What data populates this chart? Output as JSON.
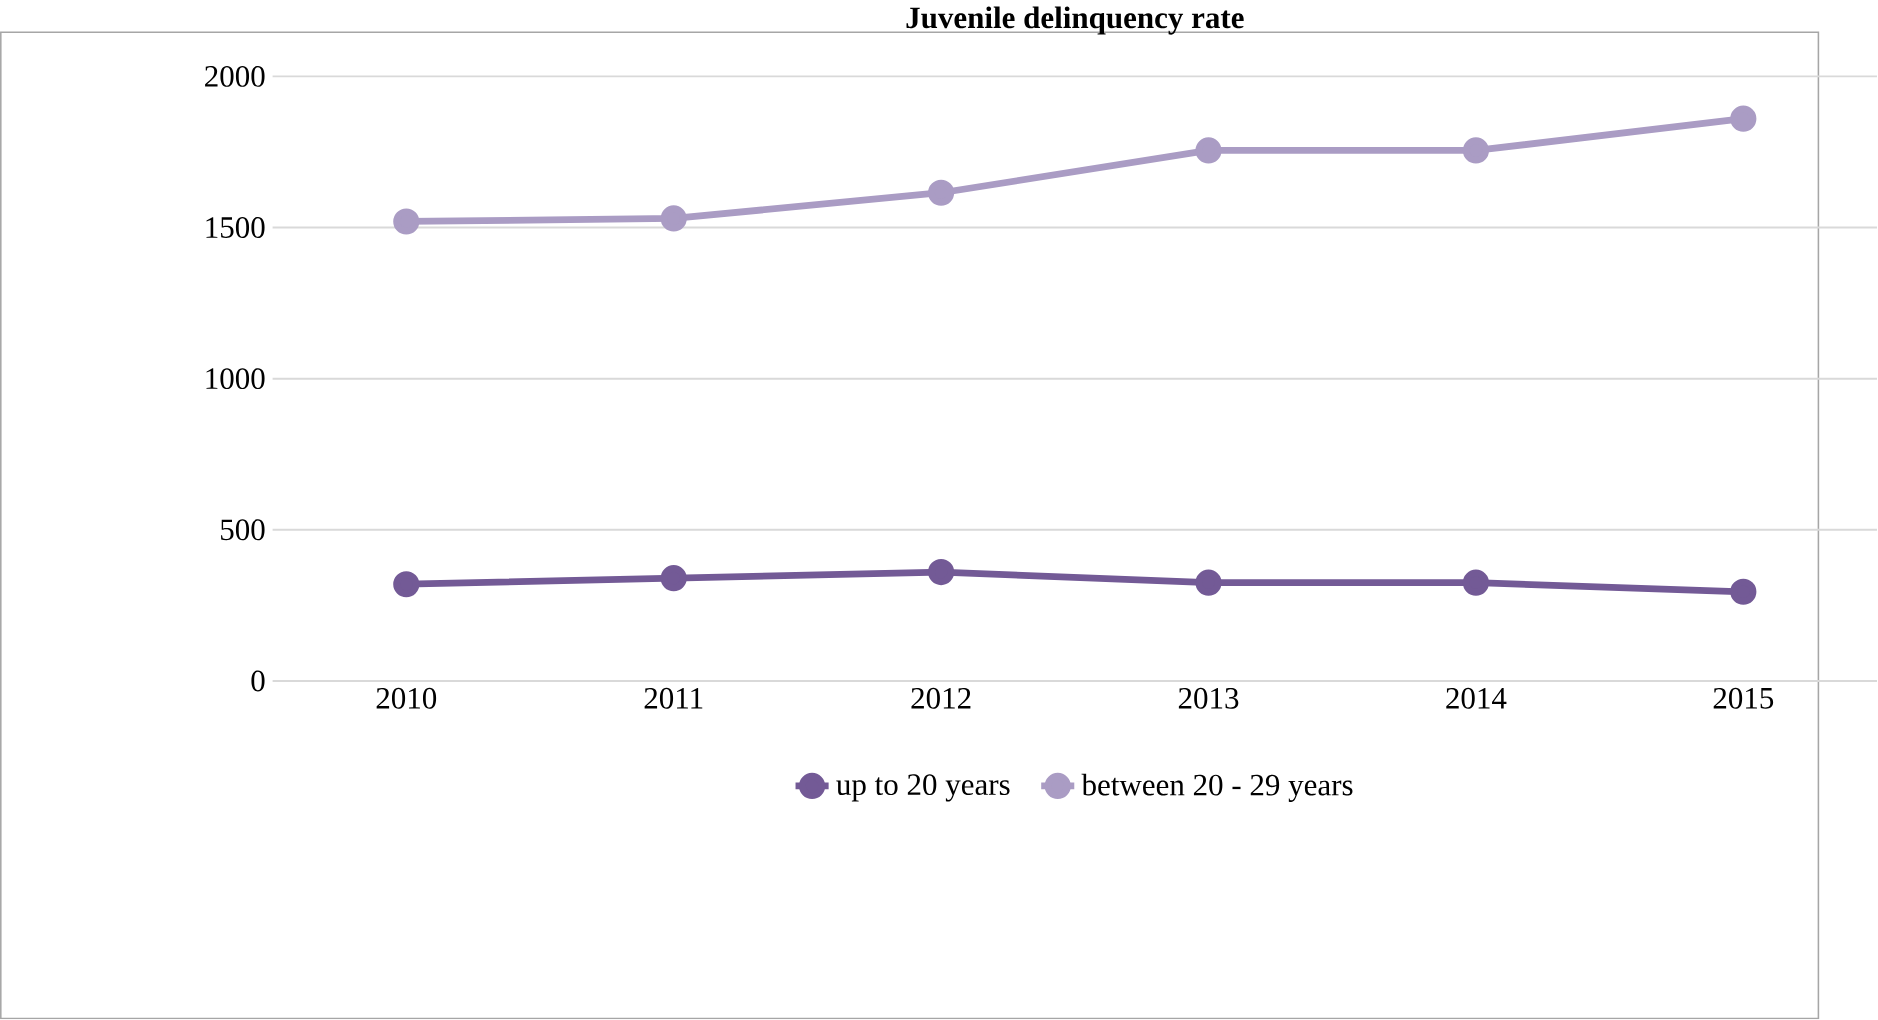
{
  "chart_data": {
    "type": "line",
    "title": "Juvenile delinquency rate",
    "categories": [
      "2010",
      "2011",
      "2012",
      "2013",
      "2014",
      "2015"
    ],
    "series": [
      {
        "name": "up to 20 years",
        "color": "#735a96",
        "values": [
          320,
          340,
          360,
          325,
          325,
          295
        ]
      },
      {
        "name": "between 20 - 29 years",
        "color": "#aa9cc4",
        "values": [
          1520,
          1530,
          1615,
          1755,
          1755,
          1860
        ]
      }
    ],
    "ylim": [
      0,
      2000
    ],
    "yticks": [
      0,
      500,
      1000,
      1500,
      2000
    ],
    "grid": "y",
    "legend": "bottom",
    "marker": "circle",
    "line_style": "solid"
  }
}
